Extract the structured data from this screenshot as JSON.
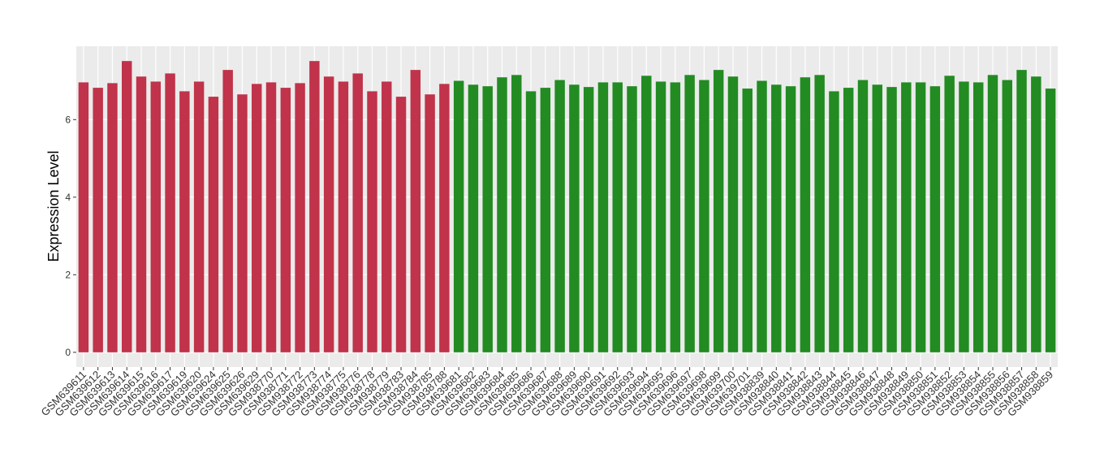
{
  "chart_data": {
    "type": "bar",
    "ylabel": "Expression Level",
    "categories": [
      "GSM639611",
      "GSM639612",
      "GSM639613",
      "GSM639614",
      "GSM639615",
      "GSM639616",
      "GSM639617",
      "GSM639619",
      "GSM639620",
      "GSM639624",
      "GSM639625",
      "GSM639626",
      "GSM639629",
      "GSM938770",
      "GSM938771",
      "GSM938772",
      "GSM938773",
      "GSM938774",
      "GSM938775",
      "GSM938776",
      "GSM938778",
      "GSM938779",
      "GSM938783",
      "GSM938784",
      "GSM938785",
      "GSM938788",
      "GSM639681",
      "GSM639682",
      "GSM639683",
      "GSM639684",
      "GSM639685",
      "GSM639686",
      "GSM639687",
      "GSM639688",
      "GSM639689",
      "GSM639690",
      "GSM639691",
      "GSM639692",
      "GSM639693",
      "GSM639694",
      "GSM639695",
      "GSM639696",
      "GSM639697",
      "GSM639698",
      "GSM639699",
      "GSM639700",
      "GSM639701",
      "GSM938839",
      "GSM938840",
      "GSM938841",
      "GSM938842",
      "GSM938843",
      "GSM938844",
      "GSM938845",
      "GSM938846",
      "GSM938847",
      "GSM938848",
      "GSM938849",
      "GSM938850",
      "GSM938851",
      "GSM938852",
      "GSM938853",
      "GSM938854",
      "GSM938855",
      "GSM938856",
      "GSM938857",
      "GSM938858",
      "GSM938859"
    ],
    "values": [
      6.96,
      6.82,
      6.94,
      7.51,
      7.11,
      6.98,
      7.19,
      6.73,
      6.98,
      6.59,
      7.28,
      6.65,
      6.92,
      6.96,
      6.82,
      6.94,
      7.51,
      7.11,
      6.98,
      7.19,
      6.73,
      6.98,
      6.59,
      7.28,
      6.65,
      6.92,
      7.0,
      6.9,
      6.86,
      7.09,
      7.15,
      6.73,
      6.82,
      7.02,
      6.9,
      6.84,
      6.96,
      6.96,
      6.86,
      7.13,
      6.98,
      6.96,
      7.15,
      7.02,
      7.28,
      7.11,
      6.8,
      7.0,
      6.9,
      6.86,
      7.09,
      7.15,
      6.73,
      6.82,
      7.02,
      6.9,
      6.84,
      6.96,
      6.96,
      6.86,
      7.13,
      6.98,
      6.96,
      7.15,
      7.02,
      7.28,
      7.11,
      6.8
    ],
    "colors": [
      "#c0334a",
      "#c0334a",
      "#c0334a",
      "#c0334a",
      "#c0334a",
      "#c0334a",
      "#c0334a",
      "#c0334a",
      "#c0334a",
      "#c0334a",
      "#c0334a",
      "#c0334a",
      "#c0334a",
      "#c0334a",
      "#c0334a",
      "#c0334a",
      "#c0334a",
      "#c0334a",
      "#c0334a",
      "#c0334a",
      "#c0334a",
      "#c0334a",
      "#c0334a",
      "#c0334a",
      "#c0334a",
      "#c0334a",
      "#228b22",
      "#228b22",
      "#228b22",
      "#228b22",
      "#228b22",
      "#228b22",
      "#228b22",
      "#228b22",
      "#228b22",
      "#228b22",
      "#228b22",
      "#228b22",
      "#228b22",
      "#228b22",
      "#228b22",
      "#228b22",
      "#228b22",
      "#228b22",
      "#228b22",
      "#228b22",
      "#228b22",
      "#228b22",
      "#228b22",
      "#228b22",
      "#228b22",
      "#228b22",
      "#228b22",
      "#228b22",
      "#228b22",
      "#228b22",
      "#228b22",
      "#228b22",
      "#228b22",
      "#228b22",
      "#228b22",
      "#228b22",
      "#228b22",
      "#228b22",
      "#228b22",
      "#228b22",
      "#228b22",
      "#228b22"
    ],
    "ylim": [
      -0.38,
      7.89
    ],
    "yticks": [
      0,
      2,
      4,
      6
    ],
    "grid": true
  }
}
